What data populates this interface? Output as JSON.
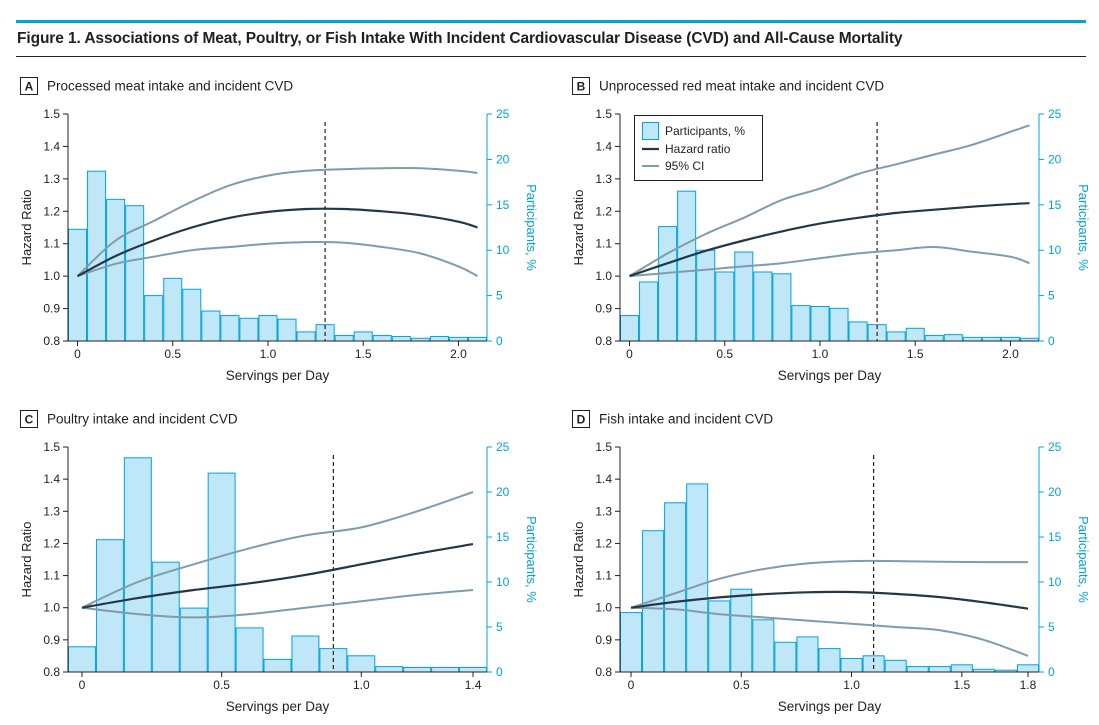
{
  "figure": {
    "title": "Figure 1. Associations of Meat, Poultry, or Fish Intake With Incident Cardiovascular Disease (CVD) and All-Cause Mortality"
  },
  "colors": {
    "accent": "#00a4dc",
    "bar_fill": "#bfe7f7",
    "bar_stroke": "#00a4dc",
    "hazard_line": "#243746",
    "ci_line": "#7f9cad",
    "text": "#231f20"
  },
  "legend": {
    "participants": "Participants, %",
    "hazard": "Hazard ratio",
    "ci": "95% CI"
  },
  "chart_data": [
    {
      "panel_letter": "A",
      "title": "Processed meat intake and incident CVD",
      "type": "bar+line",
      "xlabel": "Servings per Day",
      "ylabel": "Hazard Ratio",
      "y2label": "Participants, %",
      "xlim": [
        -0.05,
        2.15
      ],
      "ylim": [
        0.8,
        1.5
      ],
      "y2lim": [
        0,
        25
      ],
      "xticks": [
        0,
        0.5,
        1.0,
        1.5,
        2.0
      ],
      "xtick_labels": [
        "0",
        "0.5",
        "1.0",
        "1.5",
        "2.0"
      ],
      "yticks": [
        0.8,
        0.9,
        1.0,
        1.1,
        1.2,
        1.3,
        1.4,
        1.5
      ],
      "ytick_labels": [
        "0.8",
        "0.9",
        "1.0",
        "1.1",
        "1.2",
        "1.3",
        "1.4",
        "1.5"
      ],
      "y2ticks": [
        0,
        5,
        10,
        15,
        20,
        25
      ],
      "y2tick_labels": [
        "0",
        "5",
        "10",
        "15",
        "20",
        "25"
      ],
      "reference_x": 1.3,
      "bin_width": 0.1,
      "bins_start": -0.05,
      "participants_pct": [
        12.3,
        18.7,
        15.6,
        14.9,
        5.0,
        6.9,
        5.7,
        3.3,
        2.8,
        2.5,
        2.8,
        2.4,
        1.0,
        1.8,
        0.6,
        1.0,
        0.6,
        0.5,
        0.3,
        0.5,
        0.4,
        0.4
      ],
      "x": [
        0,
        0.2,
        0.4,
        0.6,
        0.8,
        1.0,
        1.2,
        1.4,
        1.6,
        1.8,
        2.0,
        2.1
      ],
      "hazard_ratio": [
        1.0,
        1.062,
        1.11,
        1.15,
        1.18,
        1.198,
        1.207,
        1.207,
        1.2,
        1.188,
        1.168,
        1.15
      ],
      "ci_lower": [
        1.0,
        1.038,
        1.06,
        1.08,
        1.09,
        1.1,
        1.105,
        1.103,
        1.09,
        1.07,
        1.03,
        1.0
      ],
      "ci_upper": [
        1.0,
        1.11,
        1.17,
        1.23,
        1.28,
        1.31,
        1.325,
        1.33,
        1.333,
        1.333,
        1.325,
        1.318
      ]
    },
    {
      "panel_letter": "B",
      "title": "Unprocessed red meat intake and incident CVD",
      "type": "bar+line",
      "xlabel": "Servings per Day",
      "ylabel": "Hazard Ratio",
      "y2label": "Participants, %",
      "xlim": [
        -0.05,
        2.15
      ],
      "ylim": [
        0.8,
        1.5
      ],
      "y2lim": [
        0,
        25
      ],
      "xticks": [
        0,
        0.5,
        1.0,
        1.5,
        2.0
      ],
      "xtick_labels": [
        "0",
        "0.5",
        "1.0",
        "1.5",
        "2.0"
      ],
      "yticks": [
        0.8,
        0.9,
        1.0,
        1.1,
        1.2,
        1.3,
        1.4,
        1.5
      ],
      "ytick_labels": [
        "0.8",
        "0.9",
        "1.0",
        "1.1",
        "1.2",
        "1.3",
        "1.4",
        "1.5"
      ],
      "y2ticks": [
        0,
        5,
        10,
        15,
        20,
        25
      ],
      "y2tick_labels": [
        "0",
        "5",
        "10",
        "15",
        "20",
        "25"
      ],
      "reference_x": 1.3,
      "bin_width": 0.1,
      "bins_start": -0.05,
      "participants_pct": [
        2.8,
        6.5,
        12.6,
        16.5,
        10.0,
        7.6,
        9.8,
        7.6,
        7.4,
        3.9,
        3.8,
        3.6,
        2.1,
        1.8,
        1.0,
        1.4,
        0.6,
        0.7,
        0.4,
        0.4,
        0.4,
        0.3
      ],
      "x": [
        0,
        0.2,
        0.4,
        0.6,
        0.8,
        1.0,
        1.2,
        1.4,
        1.6,
        1.8,
        2.0,
        2.1
      ],
      "hazard_ratio": [
        1.0,
        1.04,
        1.078,
        1.11,
        1.138,
        1.162,
        1.18,
        1.195,
        1.205,
        1.214,
        1.222,
        1.225
      ],
      "ci_lower": [
        1.0,
        1.01,
        1.02,
        1.03,
        1.04,
        1.055,
        1.07,
        1.08,
        1.09,
        1.075,
        1.06,
        1.04
      ],
      "ci_upper": [
        1.0,
        1.07,
        1.13,
        1.18,
        1.235,
        1.27,
        1.315,
        1.345,
        1.375,
        1.405,
        1.445,
        1.465
      ]
    },
    {
      "panel_letter": "C",
      "title": "Poultry intake and incident CVD",
      "type": "bar+line",
      "xlabel": "Servings per Day",
      "ylabel": "Hazard Ratio",
      "y2label": "Participants, %",
      "xlim": [
        -0.05,
        1.45
      ],
      "ylim": [
        0.8,
        1.5
      ],
      "y2lim": [
        0,
        25
      ],
      "xticks": [
        0,
        0.5,
        1.0,
        1.4
      ],
      "xtick_labels": [
        "0",
        "0.5",
        "1.0",
        "1.4"
      ],
      "yticks": [
        0.8,
        0.9,
        1.0,
        1.1,
        1.2,
        1.3,
        1.4,
        1.5
      ],
      "ytick_labels": [
        "0.8",
        "0.9",
        "1.0",
        "1.1",
        "1.2",
        "1.3",
        "1.4",
        "1.5"
      ],
      "y2ticks": [
        0,
        5,
        10,
        15,
        20,
        25
      ],
      "y2tick_labels": [
        "0",
        "5",
        "10",
        "15",
        "20",
        "25"
      ],
      "reference_x": 0.9,
      "bin_width": 0.1,
      "bins_start": -0.05,
      "participants_pct": [
        2.8,
        14.7,
        23.8,
        12.2,
        7.1,
        22.1,
        4.9,
        1.4,
        4.0,
        2.6,
        1.8,
        0.6,
        0.5,
        0.5,
        0.5
      ],
      "x": [
        0,
        0.2,
        0.4,
        0.6,
        0.8,
        1.0,
        1.2,
        1.4
      ],
      "hazard_ratio": [
        1.0,
        1.03,
        1.055,
        1.076,
        1.102,
        1.135,
        1.168,
        1.198
      ],
      "ci_lower": [
        1.0,
        0.98,
        0.97,
        0.98,
        1.0,
        1.02,
        1.04,
        1.055
      ],
      "ci_upper": [
        1.0,
        1.08,
        1.135,
        1.185,
        1.225,
        1.25,
        1.3,
        1.36
      ]
    },
    {
      "panel_letter": "D",
      "title": "Fish intake and incident CVD",
      "type": "bar+line",
      "xlabel": "Servings per Day",
      "ylabel": "Hazard Ratio",
      "y2label": "Participants, %",
      "xlim": [
        -0.05,
        1.85
      ],
      "ylim": [
        0.8,
        1.5
      ],
      "y2lim": [
        0,
        25
      ],
      "xticks": [
        0,
        0.5,
        1.0,
        1.5,
        1.8
      ],
      "xtick_labels": [
        "0",
        "0.5",
        "1.0",
        "1.5",
        "1.8"
      ],
      "yticks": [
        0.8,
        0.9,
        1.0,
        1.1,
        1.2,
        1.3,
        1.4,
        1.5
      ],
      "ytick_labels": [
        "0.8",
        "0.9",
        "1.0",
        "1.1",
        "1.2",
        "1.3",
        "1.4",
        "1.5"
      ],
      "y2ticks": [
        0,
        5,
        10,
        15,
        20,
        25
      ],
      "y2tick_labels": [
        "0",
        "5",
        "10",
        "15",
        "20",
        "25"
      ],
      "reference_x": 1.1,
      "bin_width": 0.1,
      "bins_start": -0.05,
      "participants_pct": [
        6.6,
        15.7,
        18.8,
        20.9,
        7.9,
        9.2,
        5.8,
        3.3,
        3.9,
        2.6,
        1.5,
        1.8,
        1.3,
        0.6,
        0.6,
        0.8,
        0.3,
        0.2,
        0.8
      ],
      "x": [
        0,
        0.2,
        0.4,
        0.6,
        0.8,
        1.0,
        1.2,
        1.4,
        1.6,
        1.8
      ],
      "hazard_ratio": [
        1.0,
        1.018,
        1.032,
        1.042,
        1.048,
        1.049,
        1.043,
        1.033,
        1.017,
        0.997
      ],
      "ci_lower": [
        1.0,
        0.995,
        0.98,
        0.97,
        0.96,
        0.95,
        0.94,
        0.93,
        0.9,
        0.85
      ],
      "ci_upper": [
        1.0,
        1.045,
        1.09,
        1.12,
        1.138,
        1.145,
        1.145,
        1.143,
        1.142,
        1.142
      ]
    }
  ]
}
